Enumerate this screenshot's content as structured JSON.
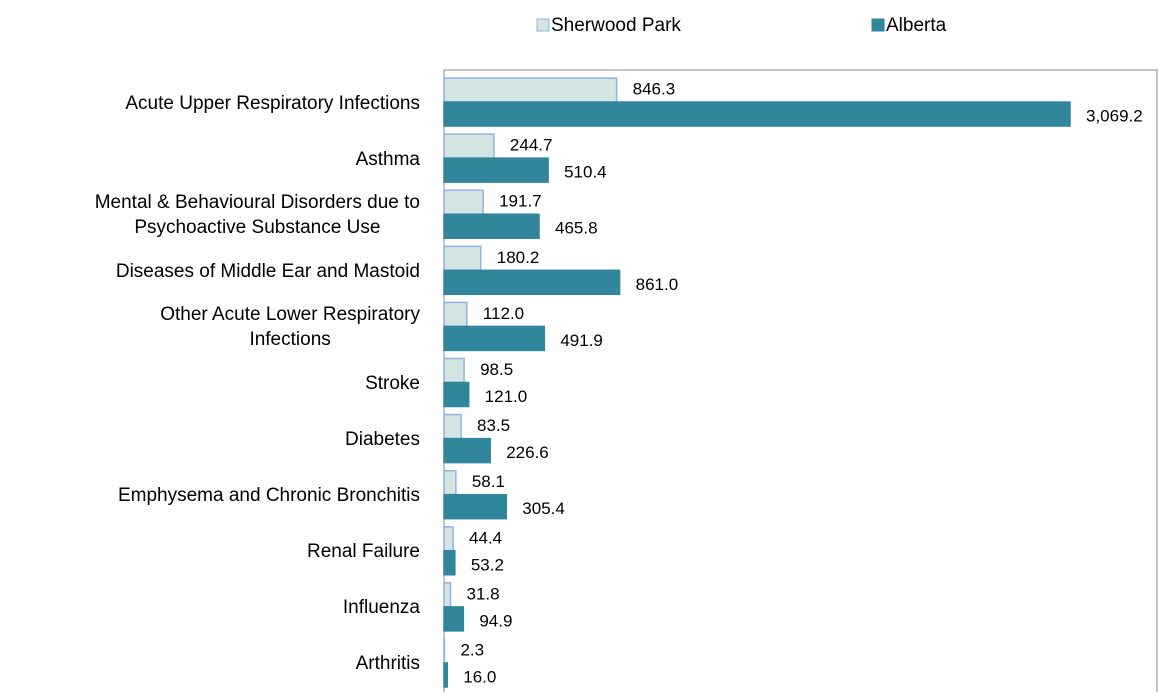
{
  "chart_data": {
    "type": "bar",
    "orientation": "horizontal",
    "categories": [
      "Acute Upper Respiratory Infections",
      "Asthma",
      "Mental & Behavioural Disorders due to\nPsychoactive Substance Use",
      "Diseases of Middle Ear and Mastoid",
      "Other Acute Lower Respiratory\nInfections",
      "Stroke",
      "Diabetes",
      "Emphysema and Chronic Bronchitis",
      "Renal Failure",
      "Influenza",
      "Arthritis"
    ],
    "series": [
      {
        "name": "Sherwood Park",
        "color": "#d4e4e2",
        "edge": "#8eb4e3",
        "values": [
          846.3,
          244.7,
          191.7,
          180.2,
          112.0,
          98.5,
          83.5,
          58.1,
          44.4,
          31.8,
          2.3
        ],
        "value_labels": [
          "846.3",
          "244.7",
          "191.7",
          "180.2",
          "112.0",
          "98.5",
          "83.5",
          "58.1",
          "44.4",
          "31.8",
          "2.3"
        ]
      },
      {
        "name": "Alberta",
        "color": "#31869b",
        "edge": "#31869b",
        "values": [
          3069.2,
          510.4,
          465.8,
          861.0,
          491.9,
          121.0,
          226.6,
          305.4,
          53.2,
          94.9,
          16.0
        ],
        "value_labels": [
          "3,069.2",
          "510.4",
          "465.8",
          "861.0",
          "491.9",
          "121.0",
          "226.6",
          "305.4",
          "53.2",
          "94.9",
          "16.0"
        ]
      }
    ],
    "legend": "top"
  }
}
